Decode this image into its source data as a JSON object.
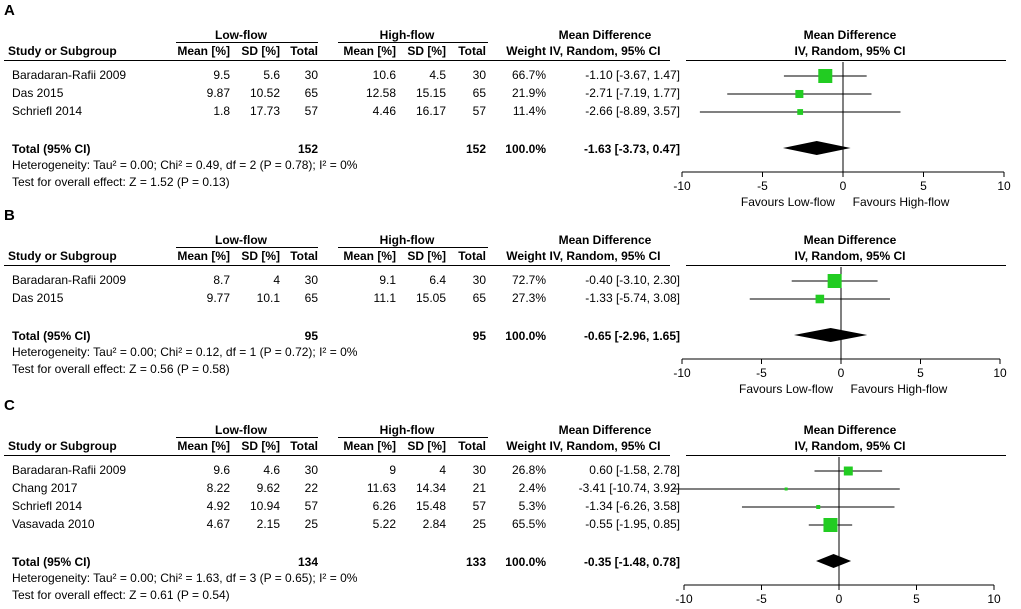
{
  "colors": {
    "square": "#22cc22",
    "diamond": "#000000"
  },
  "header": {
    "group1": "Low-flow",
    "group2": "High-flow",
    "study_col": "Study or Subgroup",
    "mean": "Mean [%]",
    "sd": "SD [%]",
    "total": "Total",
    "weight": "Weight",
    "md": "Mean Difference",
    "md_method": "IV, Random, 95% CI"
  },
  "axis": {
    "ticks": [
      "-10",
      "-5",
      "0",
      "5",
      "10"
    ],
    "favours_left": "Favours Low-flow",
    "favours_right": "Favours High-flow"
  },
  "chart_data": [
    {
      "type": "forest",
      "letter": "A",
      "xlim": [
        -10,
        10
      ],
      "studies": [
        {
          "name": "Baradaran-Rafii 2009",
          "m1": "9.5",
          "sd1": "5.6",
          "n1": "30",
          "m2": "10.6",
          "sd2": "4.5",
          "n2": "30",
          "weight": "66.7%",
          "ci": "-1.10 [-3.67, 1.47]",
          "md": -1.1,
          "lo": -3.67,
          "hi": 1.47,
          "w": 66.7
        },
        {
          "name": "Das 2015",
          "m1": "9.87",
          "sd1": "10.52",
          "n1": "65",
          "m2": "12.58",
          "sd2": "15.15",
          "n2": "65",
          "weight": "21.9%",
          "ci": "-2.71 [-7.19, 1.77]",
          "md": -2.71,
          "lo": -7.19,
          "hi": 1.77,
          "w": 21.9
        },
        {
          "name": "Schriefl 2014",
          "m1": "1.8",
          "sd1": "17.73",
          "n1": "57",
          "m2": "4.46",
          "sd2": "16.17",
          "n2": "57",
          "weight": "11.4%",
          "ci": "-2.66 [-8.89, 3.57]",
          "md": -2.66,
          "lo": -8.89,
          "hi": 3.57,
          "w": 11.4
        }
      ],
      "total": {
        "label": "Total (95% CI)",
        "n1": "152",
        "n2": "152",
        "weight": "100.0%",
        "ci": "-1.63 [-3.73, 0.47]",
        "md": -1.63,
        "lo": -3.73,
        "hi": 0.47
      },
      "heterogeneity": "Heterogeneity: Tau² = 0.00; Chi² = 0.49, df = 2 (P = 0.78); I² = 0%",
      "overall": "Test for overall effect: Z = 1.52 (P = 0.13)"
    },
    {
      "type": "forest",
      "letter": "B",
      "xlim": [
        -10,
        10
      ],
      "studies": [
        {
          "name": "Baradaran-Rafii 2009",
          "m1": "8.7",
          "sd1": "4",
          "n1": "30",
          "m2": "9.1",
          "sd2": "6.4",
          "n2": "30",
          "weight": "72.7%",
          "ci": "-0.40 [-3.10, 2.30]",
          "md": -0.4,
          "lo": -3.1,
          "hi": 2.3,
          "w": 72.7
        },
        {
          "name": "Das 2015",
          "m1": "9.77",
          "sd1": "10.1",
          "n1": "65",
          "m2": "11.1",
          "sd2": "15.05",
          "n2": "65",
          "weight": "27.3%",
          "ci": "-1.33 [-5.74, 3.08]",
          "md": -1.33,
          "lo": -5.74,
          "hi": 3.08,
          "w": 27.3
        }
      ],
      "total": {
        "label": "Total (95% CI)",
        "n1": "95",
        "n2": "95",
        "weight": "100.0%",
        "ci": "-0.65 [-2.96, 1.65]",
        "md": -0.65,
        "lo": -2.96,
        "hi": 1.65
      },
      "heterogeneity": "Heterogeneity: Tau² = 0.00; Chi² = 0.12, df = 1 (P = 0.72); I² = 0%",
      "overall": "Test for overall effect: Z = 0.56 (P = 0.58)"
    },
    {
      "type": "forest",
      "letter": "C",
      "xlim": [
        -10,
        10
      ],
      "studies": [
        {
          "name": "Baradaran-Rafii 2009",
          "m1": "9.6",
          "sd1": "4.6",
          "n1": "30",
          "m2": "9",
          "sd2": "4",
          "n2": "30",
          "weight": "26.8%",
          "ci": "0.60 [-1.58, 2.78]",
          "md": 0.6,
          "lo": -1.58,
          "hi": 2.78,
          "w": 26.8
        },
        {
          "name": "Chang 2017",
          "m1": "8.22",
          "sd1": "9.62",
          "n1": "22",
          "m2": "11.63",
          "sd2": "14.34",
          "n2": "21",
          "weight": "2.4%",
          "ci": "-3.41 [-10.74, 3.92]",
          "md": -3.41,
          "lo": -10.74,
          "hi": 3.92,
          "w": 2.4
        },
        {
          "name": "Schriefl 2014",
          "m1": "4.92",
          "sd1": "10.94",
          "n1": "57",
          "m2": "6.26",
          "sd2": "15.48",
          "n2": "57",
          "weight": "5.3%",
          "ci": "-1.34 [-6.26, 3.58]",
          "md": -1.34,
          "lo": -6.26,
          "hi": 3.58,
          "w": 5.3
        },
        {
          "name": "Vasavada 2010",
          "m1": "4.67",
          "sd1": "2.15",
          "n1": "25",
          "m2": "5.22",
          "sd2": "2.84",
          "n2": "25",
          "weight": "65.5%",
          "ci": "-0.55 [-1.95, 0.85]",
          "md": -0.55,
          "lo": -1.95,
          "hi": 0.85,
          "w": 65.5
        }
      ],
      "total": {
        "label": "Total (95% CI)",
        "n1": "134",
        "n2": "133",
        "weight": "100.0%",
        "ci": "-0.35 [-1.48, 0.78]",
        "md": -0.35,
        "lo": -1.48,
        "hi": 0.78
      },
      "heterogeneity": "Heterogeneity: Tau² = 0.00; Chi² = 1.63, df = 3 (P = 0.65); I² = 0%",
      "overall": "Test for overall effect: Z = 0.61 (P = 0.54)"
    }
  ]
}
